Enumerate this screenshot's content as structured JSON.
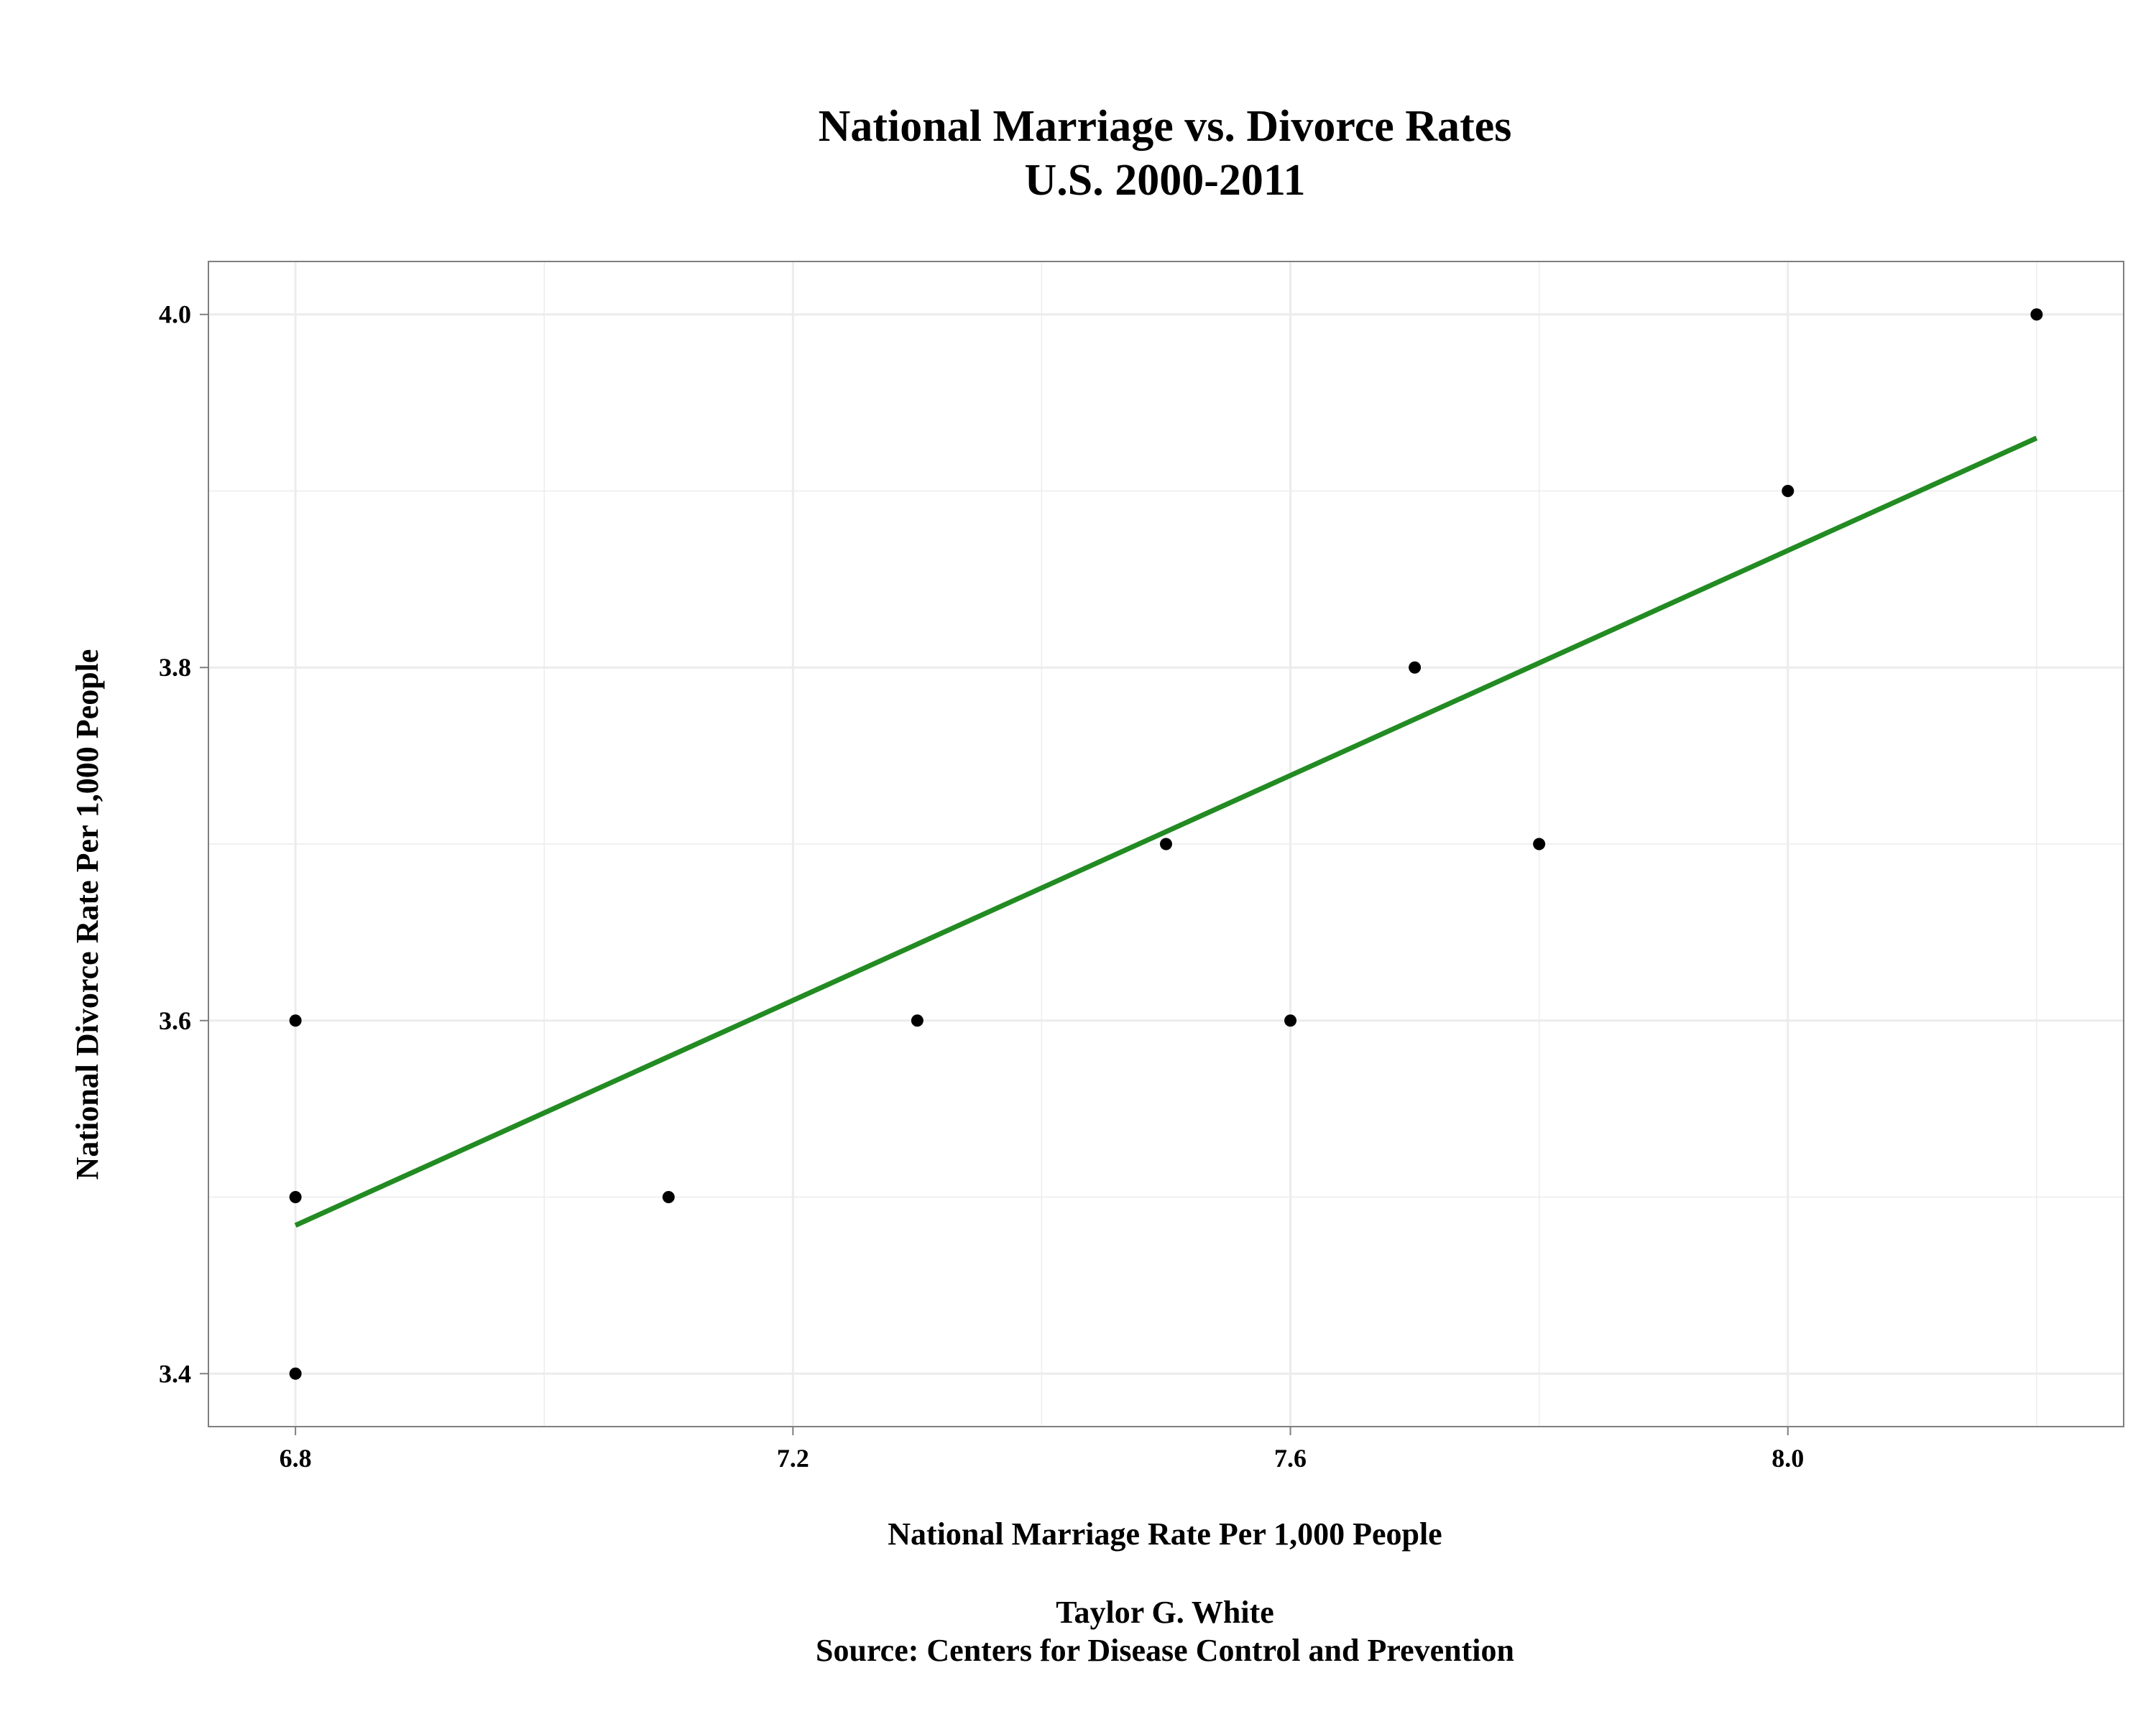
{
  "chart_data": {
    "type": "scatter",
    "title": "National Marriage vs. Divorce Rates",
    "subtitle": "U.S. 2000-2011",
    "xlabel": "National Marriage Rate Per 1,000 People",
    "ylabel": "National Divorce Rate Per 1,000 People",
    "caption_lines": [
      "Taylor G. White",
      "Source: Centers for Disease Control and Prevention"
    ],
    "xlim": [
      6.73,
      8.27
    ],
    "ylim": [
      3.37,
      4.03
    ],
    "x_ticks": [
      6.8,
      7.2,
      7.6,
      8.0
    ],
    "x_tick_labels": [
      "6.8",
      "7.2",
      "7.6",
      "8.0"
    ],
    "y_ticks": [
      3.4,
      3.6,
      3.8,
      4.0
    ],
    "y_tick_labels": [
      "3.4",
      "3.6",
      "3.8",
      "4.0"
    ],
    "x_minor_ticks": [
      7.0,
      7.4,
      7.8,
      8.2
    ],
    "y_minor_ticks": [
      3.5,
      3.7,
      3.9
    ],
    "grid": true,
    "legend": "none",
    "points": [
      {
        "x": 8.2,
        "y": 4.0
      },
      {
        "x": 8.0,
        "y": 3.9
      },
      {
        "x": 7.7,
        "y": 3.8
      },
      {
        "x": 7.5,
        "y": 3.7
      },
      {
        "x": 7.8,
        "y": 3.7
      },
      {
        "x": 6.8,
        "y": 3.6
      },
      {
        "x": 7.3,
        "y": 3.6
      },
      {
        "x": 7.6,
        "y": 3.6
      },
      {
        "x": 6.8,
        "y": 3.5
      },
      {
        "x": 7.1,
        "y": 3.5
      },
      {
        "x": 6.8,
        "y": 3.4
      }
    ],
    "trend_line": {
      "type": "linear",
      "from": {
        "x": 6.8,
        "y": 3.484
      },
      "to": {
        "x": 8.2,
        "y": 3.93
      }
    },
    "colors": {
      "points": "#000000",
      "trend_line": "#228b22",
      "grid": "#ececec",
      "panel_border": "#7f7f7f",
      "background": "#ffffff"
    }
  }
}
